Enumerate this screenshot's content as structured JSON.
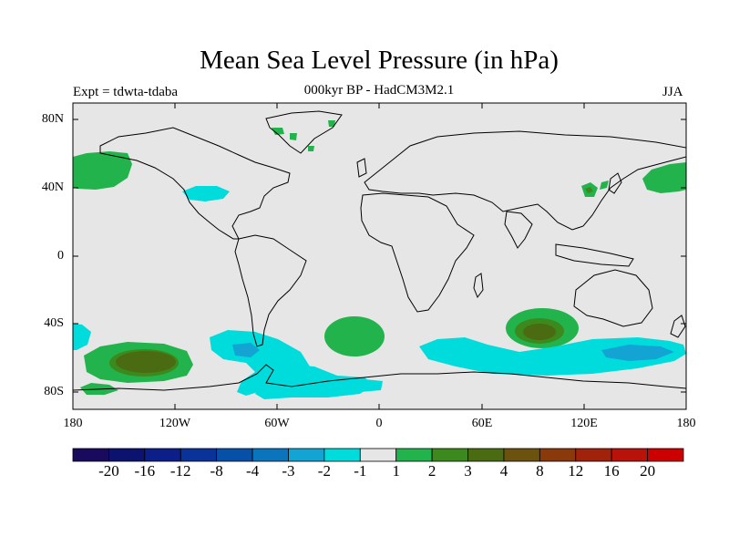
{
  "title": "Mean Sea Level Pressure (in hPa)",
  "subtitle": "000kyr BP - HadCM3M2.1",
  "experiment": "Expt = tdwta-tdaba",
  "season": "JJA",
  "lat_labels": [
    "80N",
    "40N",
    "0",
    "40S",
    "80S"
  ],
  "lon_labels": [
    "180",
    "120W",
    "60W",
    "0",
    "60E",
    "120E",
    "180"
  ],
  "colorbar": {
    "labels": [
      "-20",
      "-16",
      "-12",
      "-8",
      "-4",
      "-3",
      "-2",
      "-1",
      "1",
      "2",
      "3",
      "4",
      "8",
      "12",
      "16",
      "20"
    ],
    "colors": [
      "#1a0a5e",
      "#0c136e",
      "#0c1f88",
      "#0a3399",
      "#0750a8",
      "#0a74bd",
      "#13a4d4",
      "#00dcdc",
      "#e6e6e6",
      "#23b34c",
      "#3c8a1e",
      "#4a6b12",
      "#6b520e",
      "#8a3a0a",
      "#a0220a",
      "#b8120a",
      "#cc0000"
    ]
  },
  "colors": {
    "background": "#e6e6e6",
    "coast": "#000000"
  }
}
